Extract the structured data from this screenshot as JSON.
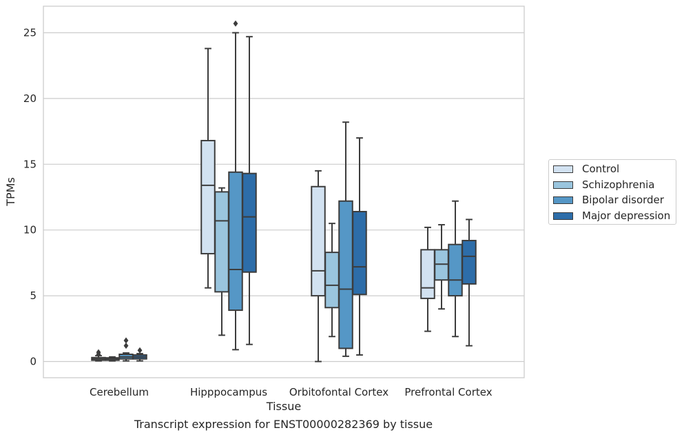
{
  "chart_data": {
    "type": "box",
    "caption": "Transcript expression for ENST00000282369 by tissue",
    "xlabel": "Tissue",
    "ylabel": "TPMs",
    "ylim": [
      -1.2,
      27
    ],
    "yticks": [
      0,
      5,
      10,
      15,
      20,
      25
    ],
    "grid": "horizontal",
    "legend_position": "right",
    "categories": [
      "Cerebellum",
      "Hipppocampus",
      "Orbitofontal Cortex",
      "Prefrontal Cortex"
    ],
    "series": [
      {
        "name": "Control",
        "color": "#d2e2f1",
        "boxes": [
          {
            "whisker_low": 0.05,
            "q1": 0.1,
            "median": 0.2,
            "q3": 0.3,
            "whisker_high": 0.45,
            "outliers": [
              0.55,
              0.7
            ]
          },
          {
            "whisker_low": 5.6,
            "q1": 8.2,
            "median": 13.4,
            "q3": 16.8,
            "whisker_high": 23.8,
            "outliers": []
          },
          {
            "whisker_low": 0.0,
            "q1": 5.0,
            "median": 6.9,
            "q3": 13.3,
            "whisker_high": 14.5,
            "outliers": []
          },
          {
            "whisker_low": 2.3,
            "q1": 4.8,
            "median": 5.6,
            "q3": 8.5,
            "whisker_high": 10.2,
            "outliers": []
          }
        ]
      },
      {
        "name": "Schizophrenia",
        "color": "#9ac5de",
        "boxes": [
          {
            "whisker_low": 0.05,
            "q1": 0.1,
            "median": 0.2,
            "q3": 0.28,
            "whisker_high": 0.35,
            "outliers": []
          },
          {
            "whisker_low": 2.0,
            "q1": 5.3,
            "median": 10.7,
            "q3": 12.9,
            "whisker_high": 13.2,
            "outliers": []
          },
          {
            "whisker_low": 1.9,
            "q1": 4.1,
            "median": 5.8,
            "q3": 8.3,
            "whisker_high": 10.5,
            "outliers": []
          },
          {
            "whisker_low": 4.0,
            "q1": 6.2,
            "median": 7.4,
            "q3": 8.5,
            "whisker_high": 10.4,
            "outliers": []
          }
        ]
      },
      {
        "name": "Bipolar disorder",
        "color": "#5597c6",
        "boxes": [
          {
            "whisker_low": 0.05,
            "q1": 0.2,
            "median": 0.35,
            "q3": 0.55,
            "whisker_high": 0.65,
            "outliers": [
              1.2,
              1.6
            ]
          },
          {
            "whisker_low": 0.9,
            "q1": 3.9,
            "median": 7.0,
            "q3": 14.4,
            "whisker_high": 25.0,
            "outliers": [
              25.7
            ]
          },
          {
            "whisker_low": 0.4,
            "q1": 1.0,
            "median": 5.5,
            "q3": 12.2,
            "whisker_high": 18.2,
            "outliers": []
          },
          {
            "whisker_low": 1.9,
            "q1": 5.0,
            "median": 6.2,
            "q3": 8.9,
            "whisker_high": 12.2,
            "outliers": []
          }
        ]
      },
      {
        "name": "Major depression",
        "color": "#2d6da9",
        "boxes": [
          {
            "whisker_low": 0.05,
            "q1": 0.2,
            "median": 0.35,
            "q3": 0.5,
            "whisker_high": 0.6,
            "outliers": [
              0.85
            ]
          },
          {
            "whisker_low": 1.3,
            "q1": 6.8,
            "median": 11.0,
            "q3": 14.3,
            "whisker_high": 24.7,
            "outliers": []
          },
          {
            "whisker_low": 0.5,
            "q1": 5.1,
            "median": 7.2,
            "q3": 11.4,
            "whisker_high": 17.0,
            "outliers": []
          },
          {
            "whisker_low": 1.2,
            "q1": 5.9,
            "median": 8.0,
            "q3": 9.2,
            "whisker_high": 10.8,
            "outliers": []
          }
        ]
      }
    ]
  }
}
